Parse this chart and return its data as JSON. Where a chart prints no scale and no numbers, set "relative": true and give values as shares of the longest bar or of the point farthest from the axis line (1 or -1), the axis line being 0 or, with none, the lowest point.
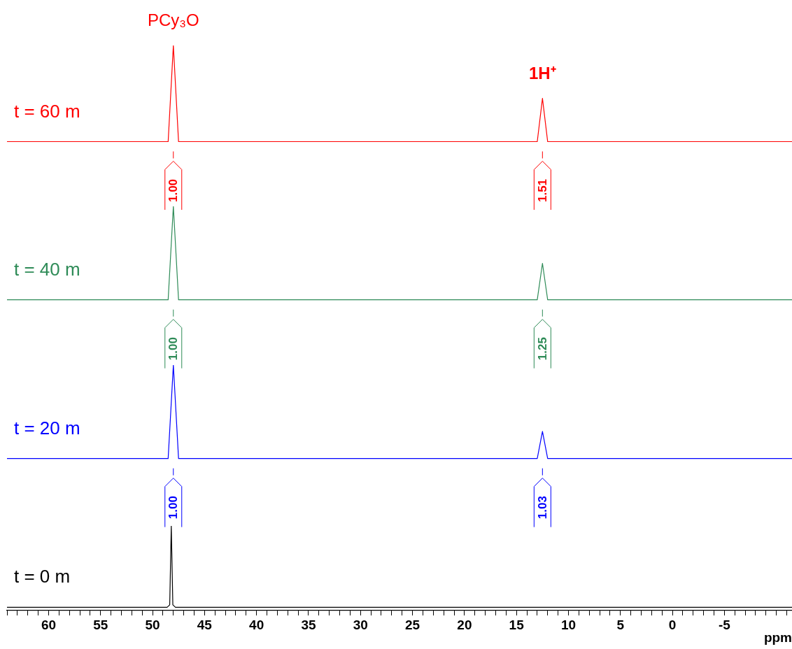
{
  "chart_data": [
    {
      "type": "line",
      "relative": true,
      "marker": "none",
      "tick_labels": false,
      "categories": [
        null,
        null,
        null,
        null,
        null,
        null,
        null,
        null,
        null,
        null,
        null,
        null,
        null,
        null,
        null,
        null,
        null,
        null,
        null,
        null,
        null,
        null,
        null,
        null,
        null,
        null,
        null,
        null,
        null,
        null,
        null,
        null,
        null,
        null,
        null,
        null,
        null,
        null,
        null,
        null,
        null,
        null,
        null,
        null,
        null,
        null,
        null,
        null,
        null,
        null,
        null,
        null,
        null,
        null,
        null,
        null,
        null,
        null,
        null,
        null,
        null,
        null,
        null,
        null,
        null,
        null,
        null,
        null,
        null,
        null,
        null,
        null,
        null,
        null,
        null,
        null,
        null,
        null,
        null,
        null,
        null,
        null,
        null,
        null,
        null,
        null,
        null,
        null,
        null,
        null,
        null,
        null,
        null,
        null,
        null,
        null,
        null,
        null,
        null,
        null,
        null,
        null,
        null,
        null,
        null,
        null,
        null,
        null,
        null,
        null,
        null,
        null,
        null,
        null,
        null,
        null,
        null,
        null,
        null,
        null,
        null,
        null,
        null,
        null,
        null,
        null,
        null,
        null,
        null,
        null,
        null,
        null,
        null,
        null,
        null,
        null,
        null,
        null,
        null,
        null,
        null,
        null,
        null,
        null,
        null,
        null,
        null,
        null,
        null,
        null,
        null,
        null
      ],
      "series": [
        {
          "name": "t = 60 m",
          "color": "#ff0000",
          "values": [
            0,
            0,
            0,
            0,
            0,
            0,
            0,
            0,
            0,
            0,
            0,
            0,
            0,
            0,
            0,
            0,
            0,
            0,
            0,
            0,
            0,
            0,
            0,
            0,
            0,
            0,
            0,
            0,
            0,
            0,
            0,
            0,
            1,
            0,
            0,
            0,
            0,
            0,
            0,
            0,
            0,
            0,
            0,
            0,
            0,
            0,
            0,
            0,
            0,
            0,
            0,
            0,
            0,
            0,
            0,
            0,
            0,
            0,
            0,
            0,
            0,
            0,
            0,
            0,
            0,
            0,
            0,
            0,
            0,
            0,
            0,
            0,
            0,
            0,
            0,
            0,
            0,
            0,
            0,
            0,
            0,
            0,
            0,
            0,
            0,
            0,
            0,
            0,
            0,
            0,
            0,
            0,
            0,
            0,
            0,
            0,
            0,
            0,
            0,
            0,
            0,
            0,
            0,
            0.45,
            0,
            0,
            0,
            0,
            0,
            0,
            0,
            0,
            0,
            0,
            0,
            0,
            0,
            0,
            0,
            0,
            0,
            0,
            0,
            0,
            0,
            0,
            0,
            0,
            0,
            0,
            0,
            0,
            0,
            0,
            0,
            0,
            0,
            0,
            0,
            0,
            0,
            0,
            0,
            0,
            0,
            0,
            0,
            0,
            0,
            0,
            0,
            0
          ]
        }
      ],
      "annotations": [
        "PCy₃O",
        "1H⁺",
        "1.00",
        "1.51"
      ]
    },
    {
      "type": "line",
      "relative": true,
      "marker": "none",
      "tick_labels": false,
      "categories": [
        null,
        null,
        null,
        null,
        null,
        null,
        null,
        null,
        null,
        null,
        null,
        null,
        null,
        null,
        null,
        null,
        null,
        null,
        null,
        null,
        null,
        null,
        null,
        null,
        null,
        null,
        null,
        null,
        null,
        null,
        null,
        null,
        null,
        null,
        null,
        null,
        null,
        null,
        null,
        null,
        null,
        null,
        null,
        null,
        null,
        null,
        null,
        null,
        null,
        null,
        null,
        null,
        null,
        null,
        null,
        null,
        null,
        null,
        null,
        null,
        null,
        null,
        null,
        null,
        null,
        null,
        null,
        null,
        null,
        null,
        null,
        null,
        null,
        null,
        null,
        null,
        null,
        null,
        null,
        null,
        null,
        null,
        null,
        null,
        null,
        null,
        null,
        null,
        null,
        null,
        null,
        null,
        null,
        null,
        null,
        null,
        null,
        null,
        null,
        null,
        null,
        null,
        null,
        null,
        null,
        null,
        null,
        null,
        null,
        null,
        null,
        null,
        null,
        null,
        null,
        null,
        null,
        null,
        null,
        null,
        null,
        null,
        null,
        null,
        null,
        null,
        null,
        null,
        null,
        null,
        null,
        null,
        null,
        null,
        null,
        null,
        null,
        null,
        null,
        null,
        null,
        null,
        null,
        null,
        null,
        null,
        null,
        null,
        null,
        null,
        null,
        null
      ],
      "series": [
        {
          "name": "t = 40 m",
          "color": "#2e8b57",
          "values": [
            0,
            0,
            0,
            0,
            0,
            0,
            0,
            0,
            0,
            0,
            0,
            0,
            0,
            0,
            0,
            0,
            0,
            0,
            0,
            0,
            0,
            0,
            0,
            0,
            0,
            0,
            0,
            0,
            0,
            0,
            0,
            0,
            1,
            0,
            0,
            0,
            0,
            0,
            0,
            0,
            0,
            0,
            0,
            0,
            0,
            0,
            0,
            0,
            0,
            0,
            0,
            0,
            0,
            0,
            0,
            0,
            0,
            0,
            0,
            0,
            0,
            0,
            0,
            0,
            0,
            0,
            0,
            0,
            0,
            0,
            0,
            0,
            0,
            0,
            0,
            0,
            0,
            0,
            0,
            0,
            0,
            0,
            0,
            0,
            0,
            0,
            0,
            0,
            0,
            0,
            0,
            0,
            0,
            0,
            0,
            0,
            0,
            0,
            0,
            0,
            0,
            0,
            0,
            0.39,
            0,
            0,
            0,
            0,
            0,
            0,
            0,
            0,
            0,
            0,
            0,
            0,
            0,
            0,
            0,
            0,
            0,
            0,
            0,
            0,
            0,
            0,
            0,
            0,
            0,
            0,
            0,
            0,
            0,
            0,
            0,
            0,
            0,
            0,
            0,
            0,
            0,
            0,
            0,
            0,
            0,
            0,
            0,
            0,
            0,
            0,
            0,
            0
          ]
        }
      ],
      "annotations": [
        "1.00",
        "1.25"
      ]
    },
    {
      "type": "line",
      "relative": true,
      "marker": "none",
      "tick_labels": false,
      "categories": [
        null,
        null,
        null,
        null,
        null,
        null,
        null,
        null,
        null,
        null,
        null,
        null,
        null,
        null,
        null,
        null,
        null,
        null,
        null,
        null,
        null,
        null,
        null,
        null,
        null,
        null,
        null,
        null,
        null,
        null,
        null,
        null,
        null,
        null,
        null,
        null,
        null,
        null,
        null,
        null,
        null,
        null,
        null,
        null,
        null,
        null,
        null,
        null,
        null,
        null,
        null,
        null,
        null,
        null,
        null,
        null,
        null,
        null,
        null,
        null,
        null,
        null,
        null,
        null,
        null,
        null,
        null,
        null,
        null,
        null,
        null,
        null,
        null,
        null,
        null,
        null,
        null,
        null,
        null,
        null,
        null,
        null,
        null,
        null,
        null,
        null,
        null,
        null,
        null,
        null,
        null,
        null,
        null,
        null,
        null,
        null,
        null,
        null,
        null,
        null,
        null,
        null,
        null,
        null,
        null,
        null,
        null,
        null,
        null,
        null,
        null,
        null,
        null,
        null,
        null,
        null,
        null,
        null,
        null,
        null,
        null,
        null,
        null,
        null,
        null,
        null,
        null,
        null,
        null,
        null,
        null,
        null,
        null,
        null,
        null,
        null,
        null,
        null,
        null,
        null,
        null,
        null,
        null,
        null,
        null,
        null,
        null,
        null,
        null,
        null,
        null,
        null
      ],
      "series": [
        {
          "name": "t = 20 m",
          "color": "#0000ff",
          "values": [
            0,
            0,
            0,
            0,
            0,
            0,
            0,
            0,
            0,
            0,
            0,
            0,
            0,
            0,
            0,
            0,
            0,
            0,
            0,
            0,
            0,
            0,
            0,
            0,
            0,
            0,
            0,
            0,
            0,
            0,
            0,
            0,
            1,
            0,
            0,
            0,
            0,
            0,
            0,
            0,
            0,
            0,
            0,
            0,
            0,
            0,
            0,
            0,
            0,
            0,
            0,
            0,
            0,
            0,
            0,
            0,
            0,
            0,
            0,
            0,
            0,
            0,
            0,
            0,
            0,
            0,
            0,
            0,
            0,
            0,
            0,
            0,
            0,
            0,
            0,
            0,
            0,
            0,
            0,
            0,
            0,
            0,
            0,
            0,
            0,
            0,
            0,
            0,
            0,
            0,
            0,
            0,
            0,
            0,
            0,
            0,
            0,
            0,
            0,
            0,
            0,
            0,
            0,
            0.29,
            0,
            0,
            0,
            0,
            0,
            0,
            0,
            0,
            0,
            0,
            0,
            0,
            0,
            0,
            0,
            0,
            0,
            0,
            0,
            0,
            0,
            0,
            0,
            0,
            0,
            0,
            0,
            0,
            0,
            0,
            0,
            0,
            0,
            0,
            0,
            0,
            0,
            0,
            0,
            0,
            0,
            0,
            0,
            0,
            0,
            0,
            0,
            0
          ]
        }
      ],
      "annotations": [
        "1.00",
        "1.03"
      ]
    },
    {
      "type": "line",
      "relative": true,
      "marker": "none",
      "xlabel": "ppm",
      "xlim": [
        64,
        -11.5
      ],
      "x": [
        64,
        48.6,
        48.35,
        48.2,
        48.05,
        47.8,
        -11.5
      ],
      "xticks": [
        {
          "value": 64,
          "label": null
        },
        {
          "value": 63,
          "label": null
        },
        {
          "value": 62,
          "label": null
        },
        {
          "value": 61,
          "label": null
        },
        60,
        {
          "value": 59,
          "label": null
        },
        {
          "value": 58,
          "label": null
        },
        {
          "value": 57,
          "label": null
        },
        {
          "value": 56,
          "label": null
        },
        55,
        {
          "value": 54,
          "label": null
        },
        {
          "value": 53,
          "label": null
        },
        {
          "value": 52,
          "label": null
        },
        {
          "value": 51,
          "label": null
        },
        50,
        {
          "value": 49,
          "label": null
        },
        {
          "value": 48,
          "label": null
        },
        {
          "value": 47,
          "label": null
        },
        {
          "value": 46,
          "label": null
        },
        45,
        {
          "value": 44,
          "label": null
        },
        {
          "value": 43,
          "label": null
        },
        {
          "value": 42,
          "label": null
        },
        {
          "value": 41,
          "label": null
        },
        40,
        {
          "value": 39,
          "label": null
        },
        {
          "value": 38,
          "label": null
        },
        {
          "value": 37,
          "label": null
        },
        {
          "value": 36,
          "label": null
        },
        35,
        {
          "value": 34,
          "label": null
        },
        {
          "value": 33,
          "label": null
        },
        {
          "value": 32,
          "label": null
        },
        {
          "value": 31,
          "label": null
        },
        30,
        {
          "value": 29,
          "label": null
        },
        {
          "value": 28,
          "label": null
        },
        {
          "value": 27,
          "label": null
        },
        {
          "value": 26,
          "label": null
        },
        25,
        {
          "value": 24,
          "label": null
        },
        {
          "value": 23,
          "label": null
        },
        {
          "value": 22,
          "label": null
        },
        {
          "value": 21,
          "label": null
        },
        20,
        {
          "value": 19,
          "label": null
        },
        {
          "value": 18,
          "label": null
        },
        {
          "value": 17,
          "label": null
        },
        {
          "value": 16,
          "label": null
        },
        15,
        {
          "value": 14,
          "label": null
        },
        {
          "value": 13,
          "label": null
        },
        {
          "value": 12,
          "label": null
        },
        {
          "value": 11,
          "label": null
        },
        10,
        {
          "value": 9,
          "label": null
        },
        {
          "value": 8,
          "label": null
        },
        {
          "value": 7,
          "label": null
        },
        {
          "value": 6,
          "label": null
        },
        5,
        {
          "value": 4,
          "label": null
        },
        {
          "value": 3,
          "label": null
        },
        {
          "value": 2,
          "label": null
        },
        {
          "value": 1,
          "label": null
        },
        0,
        {
          "value": -1,
          "label": null
        },
        {
          "value": -2,
          "label": null
        },
        {
          "value": -3,
          "label": null
        },
        {
          "value": -4,
          "label": null
        },
        -5,
        {
          "value": -6,
          "label": null
        },
        {
          "value": -7,
          "label": null
        },
        {
          "value": -8,
          "label": null
        },
        {
          "value": -9,
          "label": null
        },
        {
          "value": -10,
          "label": null
        },
        {
          "value": -11,
          "label": null
        }
      ],
      "series": [
        {
          "name": "t = 0 m",
          "color": "#000000",
          "values": [
            0,
            0,
            0.03,
            1,
            0.03,
            0,
            0
          ]
        }
      ]
    }
  ]
}
